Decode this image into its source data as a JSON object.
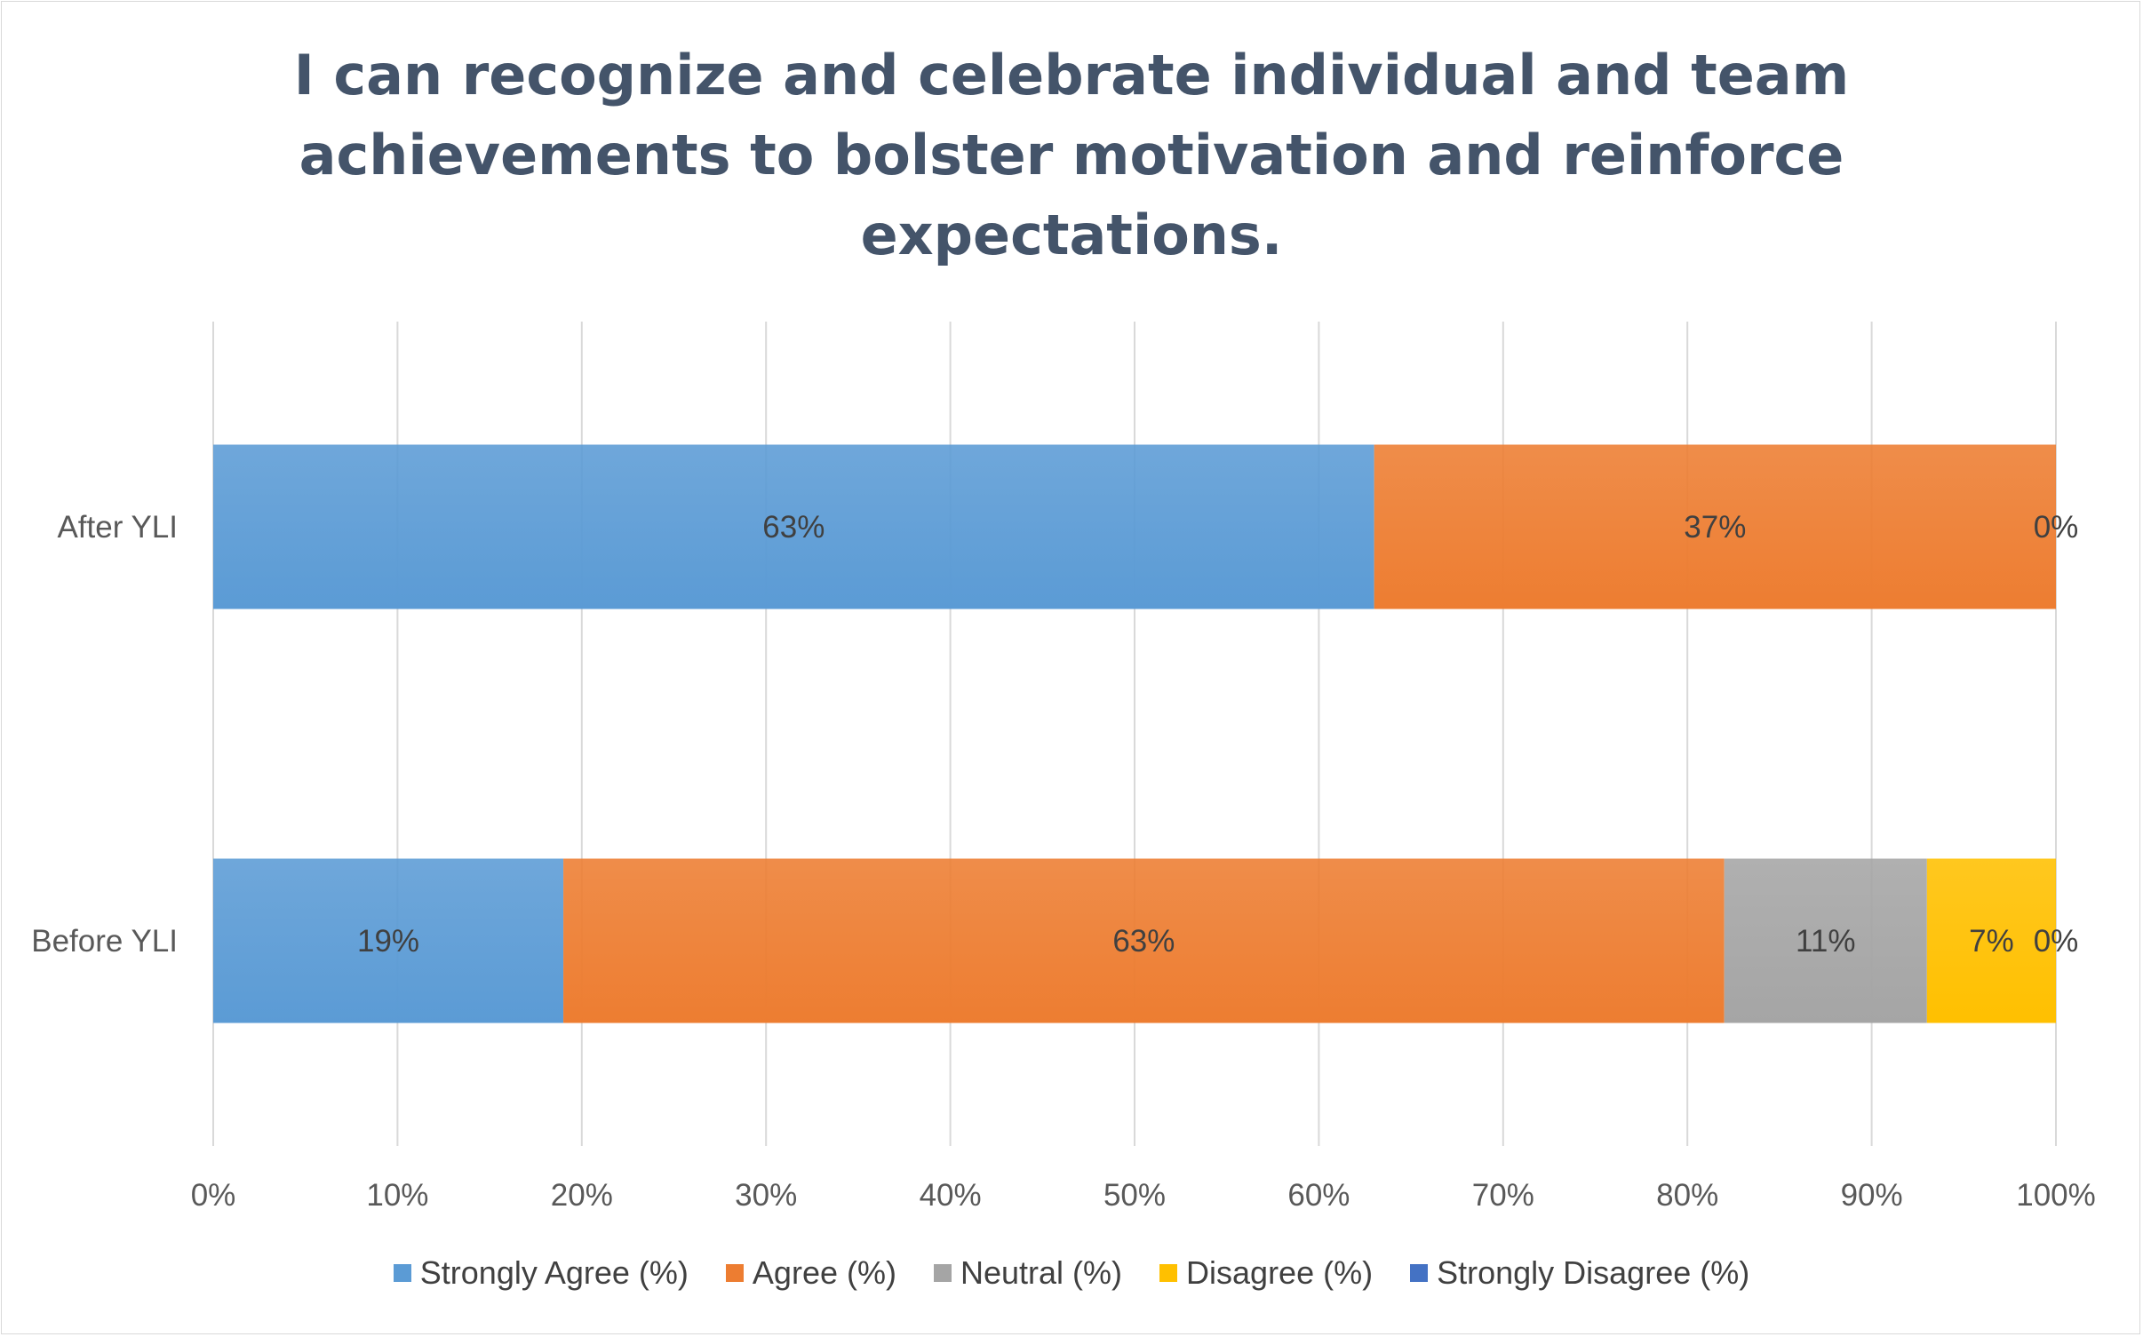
{
  "chart_data": {
    "type": "bar",
    "orientation": "horizontal",
    "stacked": "percent",
    "title_lines": [
      "I can recognize and celebrate individual and team",
      "achievements to bolster motivation and reinforce",
      "expectations."
    ],
    "categories": [
      "After YLI",
      "Before YLI"
    ],
    "series": [
      {
        "name": "Strongly Agree (%)",
        "color": "#5b9bd5",
        "values": [
          63,
          19
        ],
        "labels": [
          "63%",
          "19%"
        ]
      },
      {
        "name": "Agree (%)",
        "color": "#ed7d31",
        "values": [
          37,
          63
        ],
        "labels": [
          "37%",
          "63%"
        ]
      },
      {
        "name": "Neutral (%)",
        "color": "#a5a5a5",
        "values": [
          0,
          11
        ],
        "labels": [
          "",
          "11%"
        ]
      },
      {
        "name": "Disagree (%)",
        "color": "#ffc000",
        "values": [
          0,
          7
        ],
        "labels": [
          "",
          "7%"
        ]
      },
      {
        "name": "Strongly Disagree (%)",
        "color": "#4472c4",
        "values": [
          0,
          0
        ],
        "labels": [
          "0%",
          "0%"
        ]
      }
    ],
    "xlim": [
      0,
      100
    ],
    "xticks": [
      "0%",
      "10%",
      "20%",
      "30%",
      "40%",
      "50%",
      "60%",
      "70%",
      "80%",
      "90%",
      "100%"
    ],
    "grid": true,
    "legend_position": "bottom"
  }
}
